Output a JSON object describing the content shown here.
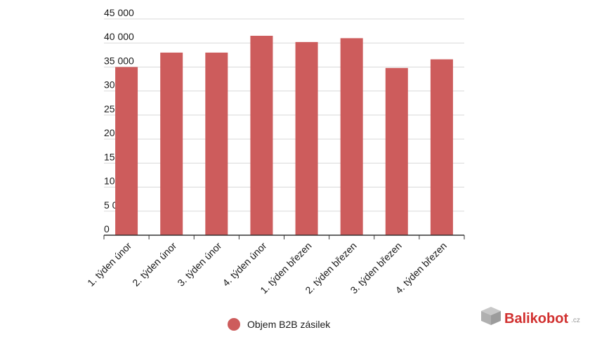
{
  "chart_data": {
    "type": "bar",
    "categories": [
      "1. týden únor",
      "2. týden únor",
      "3. týden únor",
      "4. týden únor",
      "1. týden březen",
      "2. týden březen",
      "3. týden březen",
      "4. týden březen"
    ],
    "series": [
      {
        "name": "Objem B2B zásilek",
        "values": [
          35000,
          38000,
          38000,
          41500,
          40200,
          41000,
          34800,
          36600
        ]
      }
    ],
    "ylim": [
      0,
      45000
    ],
    "yticks": [
      "0",
      "5 000",
      "10 000",
      "15 000",
      "20 000",
      "25 000",
      "30 000",
      "35 000",
      "40 000",
      "45 000"
    ],
    "ytick_values": [
      0,
      5000,
      10000,
      15000,
      20000,
      25000,
      30000,
      35000,
      40000,
      45000
    ],
    "grid": true,
    "legend": "bottom-center",
    "bar_color": "#cd5c5c"
  },
  "legend": {
    "label": "Objem B2B zásilek",
    "color": "#cd5c5c"
  },
  "logo": {
    "brand": "Balikobot",
    "tld": ".cz",
    "icon": "box-icon"
  }
}
